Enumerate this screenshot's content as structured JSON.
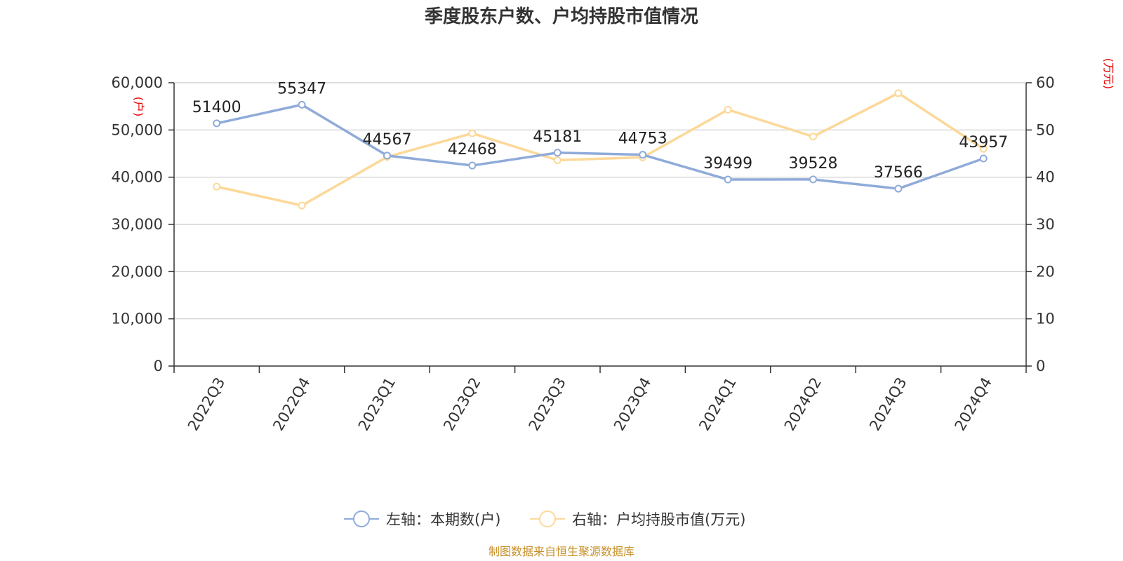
{
  "title": "季度股东户数、户均持股市值情况",
  "source": "制图数据来自恒生聚源数据库",
  "colors": {
    "left_series": "#8fabd9",
    "right_series": "#fcd899",
    "unit": "#e60000",
    "source": "#c8902a"
  },
  "chart_data": {
    "type": "line",
    "title": "季度股东户数、户均持股市值情况",
    "categories": [
      "2022Q3",
      "2022Q4",
      "2023Q1",
      "2023Q2",
      "2023Q3",
      "2023Q4",
      "2024Q1",
      "2024Q2",
      "2024Q3",
      "2024Q4"
    ],
    "left_axis": {
      "unit": "(户)",
      "ylim": [
        0,
        60000
      ],
      "ticks": [
        "0",
        "10,000",
        "20,000",
        "30,000",
        "40,000",
        "50,000",
        "60,000"
      ]
    },
    "right_axis": {
      "unit": "(万元)",
      "ylim": [
        0,
        60
      ],
      "ticks": [
        "0",
        "10",
        "20",
        "30",
        "40",
        "50",
        "60"
      ]
    },
    "grid": true,
    "legend_position": "bottom",
    "series": [
      {
        "name": "左轴：本期数(户)",
        "axis": "left",
        "values": [
          51400,
          55347,
          44567,
          42468,
          45181,
          44753,
          39499,
          39528,
          37566,
          43957
        ],
        "labels": [
          "51400",
          "55347",
          "44567",
          "42468",
          "45181",
          "44753",
          "39499",
          "39528",
          "37566",
          "43957"
        ]
      },
      {
        "name": "右轴：户均持股市值(万元)",
        "axis": "right",
        "values": [
          38.0,
          34.0,
          44.3,
          49.3,
          43.6,
          44.2,
          54.3,
          48.6,
          57.8,
          46.0
        ]
      }
    ]
  }
}
